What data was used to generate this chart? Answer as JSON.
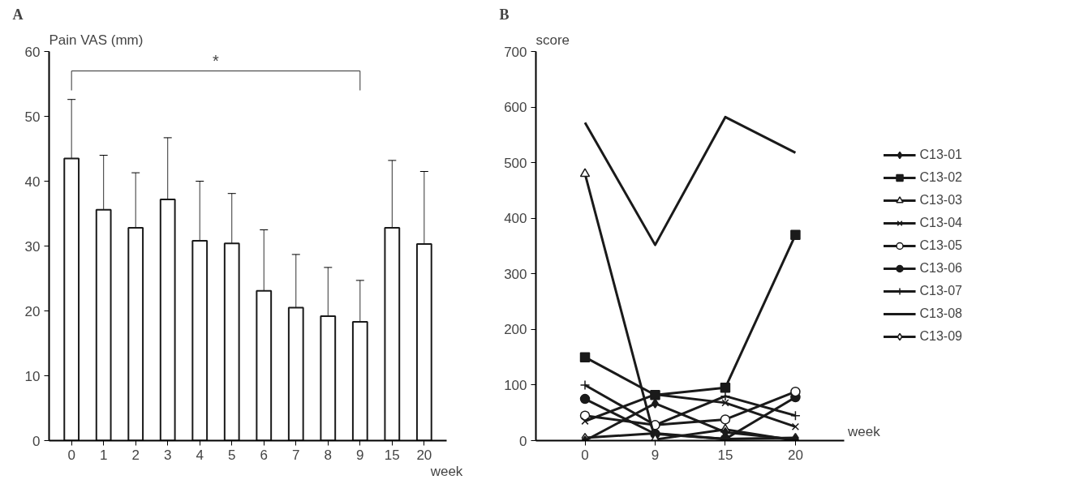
{
  "chart_data": [
    {
      "type": "bar",
      "annotations": [
        "A",
        "*"
      ],
      "ylabel": "Pain VAS (mm)",
      "xlabel": "week",
      "categories": [
        "0",
        "1",
        "2",
        "3",
        "4",
        "5",
        "6",
        "7",
        "8",
        "9",
        "15",
        "20"
      ],
      "values": [
        43.5,
        35.6,
        32.8,
        37.2,
        30.8,
        30.4,
        23.1,
        20.5,
        19.2,
        18.3,
        32.8,
        30.3
      ],
      "errors": [
        [
          43.5,
          52.6
        ],
        [
          35.6,
          44.0
        ],
        [
          32.8,
          41.3
        ],
        [
          37.2,
          46.7
        ],
        [
          30.8,
          40.0
        ],
        [
          30.4,
          38.1
        ],
        [
          23.1,
          32.5
        ],
        [
          20.5,
          28.7
        ],
        [
          19.2,
          26.7
        ],
        [
          18.3,
          24.7
        ],
        [
          32.8,
          43.2
        ],
        [
          30.3,
          41.5
        ]
      ],
      "color": "#ffffff",
      "ylim": [
        0,
        60
      ],
      "yticks": [
        0,
        10,
        20,
        30,
        40,
        50,
        60
      ],
      "grid": false
    },
    {
      "type": "line",
      "annotations": [
        "B"
      ],
      "ylabel": "score",
      "xlabel": "week",
      "categories": [
        "0",
        "9",
        "15",
        "20"
      ],
      "ylim": [
        0,
        700
      ],
      "yticks": [
        0,
        100,
        200,
        300,
        400,
        500,
        600,
        700
      ],
      "grid": false,
      "legend": "right",
      "series": [
        {
          "name": "C13-01",
          "color": "#1a1a1a",
          "marker": "diamond",
          "values": [
            0,
            67,
            15,
            2
          ]
        },
        {
          "name": "C13-02",
          "color": "#1a1a1a",
          "marker": "square",
          "values": [
            150,
            82,
            95,
            370
          ]
        },
        {
          "name": "C13-03",
          "color": "#1a1a1a",
          "marker": "triangle_open",
          "values": [
            480,
            2,
            20,
            0
          ]
        },
        {
          "name": "C13-04",
          "color": "#1a1a1a",
          "marker": "x",
          "values": [
            35,
            83,
            68,
            25
          ]
        },
        {
          "name": "C13-05",
          "color": "#1a1a1a",
          "marker": "circle_open",
          "values": [
            45,
            28,
            38,
            88
          ]
        },
        {
          "name": "C13-06",
          "color": "#1a1a1a",
          "marker": "circle",
          "values": [
            75,
            12,
            3,
            78
          ]
        },
        {
          "name": "C13-07",
          "color": "#1a1a1a",
          "marker": "cross",
          "values": [
            100,
            28,
            80,
            45
          ]
        },
        {
          "name": "C13-08",
          "color": "#1a1a1a",
          "marker": "none",
          "values": [
            572,
            352,
            582,
            518
          ]
        },
        {
          "name": "C13-09",
          "color": "#1a1a1a",
          "marker": "diamond_open",
          "values": [
            5,
            13,
            3,
            5
          ]
        }
      ]
    }
  ]
}
